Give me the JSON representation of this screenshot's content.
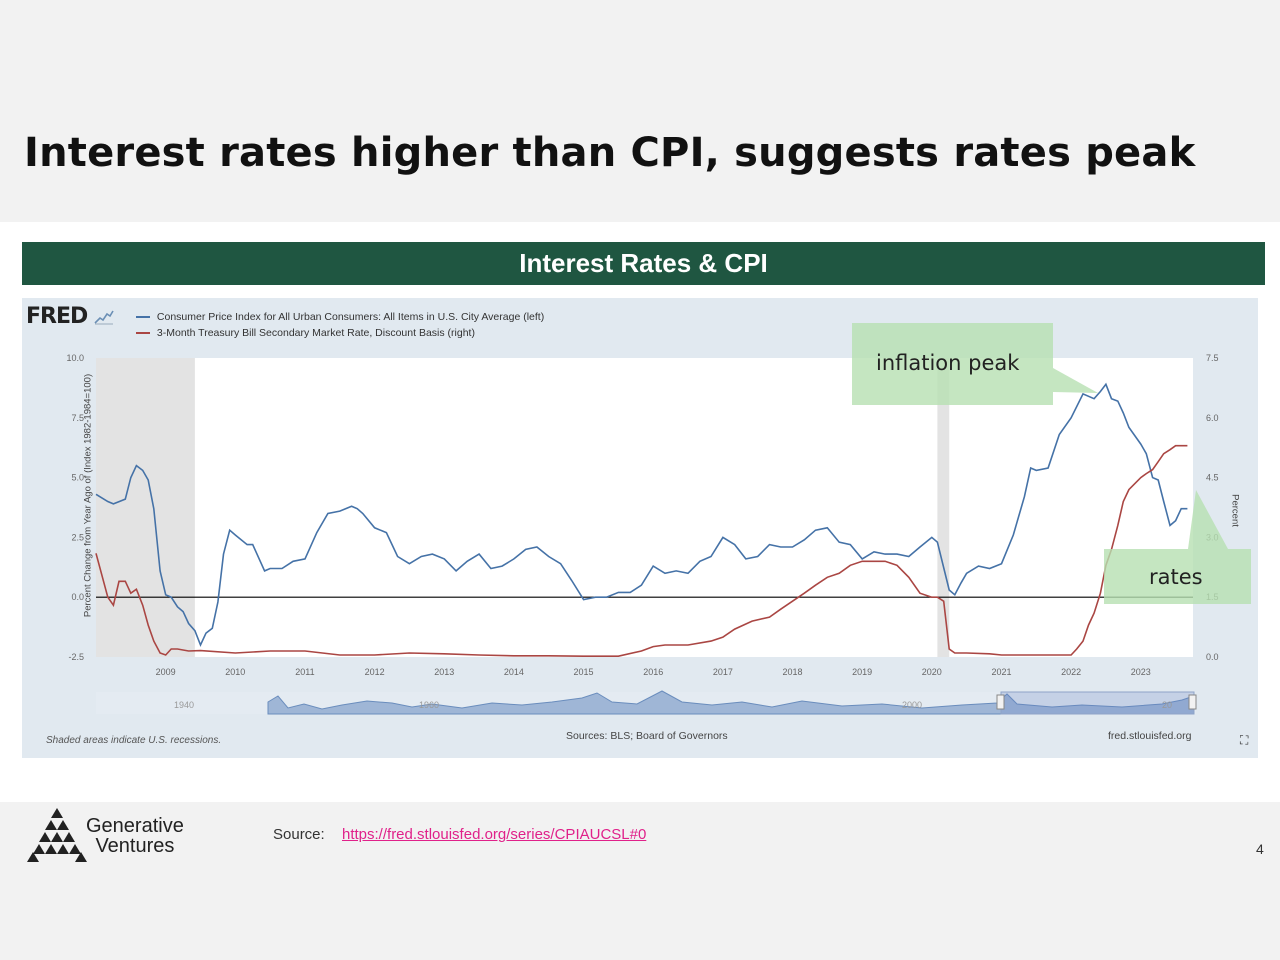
{
  "slide": {
    "title": "Interest rates higher than CPI, suggests rates peak",
    "banner": "Interest Rates & CPI",
    "callout_inflation": "inflation peak",
    "callout_rates": "rates",
    "source_label": "Source:",
    "source_link": "https://fred.stlouisfed.org/series/CPIAUCSL#0",
    "page_number": "4",
    "brand_line1": "Generative",
    "brand_line2": "Ventures"
  },
  "fred": {
    "logo": "FRED",
    "recession_note": "Shaded areas indicate U.S. recessions.",
    "sources": "Sources: BLS; Board of Governors",
    "url": "fred.stlouisfed.org",
    "navigator_labels": [
      "1940",
      "1960",
      "2000",
      "20"
    ]
  },
  "colors": {
    "banner": "#1f5641",
    "cpi_line": "#4572a7",
    "tbill_line": "#aa4643",
    "callout": "#b7e0b2",
    "link": "#e0218a"
  },
  "chart_data": {
    "type": "line",
    "legend": [
      "Consumer Price Index for All Urban Consumers: All Items in U.S. City Average (left)",
      "3-Month Treasury Bill Secondary Market Rate, Discount Basis (right)"
    ],
    "ylabel_left": "Percent Change from Year Ago of (Index 1982-1984=100)",
    "ylabel_right": "Percent",
    "ylim_left": [
      -2.5,
      10
    ],
    "ylim_right": [
      0,
      7.5
    ],
    "yticks_left": [
      "10.0",
      "7.5",
      "5.0",
      "2.5",
      "0.0",
      "-2.5"
    ],
    "yticks_right": [
      "7.5",
      "6.0",
      "4.5",
      "3.0",
      "1.5",
      "0.0"
    ],
    "xticks": [
      "2009",
      "2010",
      "2011",
      "2012",
      "2013",
      "2014",
      "2015",
      "2016",
      "2017",
      "2018",
      "2019",
      "2020",
      "2021",
      "2022",
      "2023"
    ],
    "xlim": [
      2008.0,
      2023.75
    ],
    "recessions": [
      [
        2008.0,
        2009.42
      ],
      [
        2020.08,
        2020.25
      ]
    ],
    "series": [
      {
        "axis": "left",
        "x": [
          2008.0,
          2008.17,
          2008.25,
          2008.42,
          2008.5,
          2008.58,
          2008.67,
          2008.75,
          2008.83,
          2008.92,
          2009.0,
          2009.08,
          2009.17,
          2009.25,
          2009.33,
          2009.42,
          2009.5,
          2009.58,
          2009.67,
          2009.75,
          2009.83,
          2009.92,
          2010.0,
          2010.17,
          2010.25,
          2010.42,
          2010.5,
          2010.67,
          2010.83,
          2011.0,
          2011.17,
          2011.33,
          2011.5,
          2011.67,
          2011.75,
          2011.83,
          2012.0,
          2012.17,
          2012.33,
          2012.5,
          2012.67,
          2012.83,
          2013.0,
          2013.17,
          2013.33,
          2013.5,
          2013.67,
          2013.83,
          2014.0,
          2014.17,
          2014.33,
          2014.5,
          2014.67,
          2014.83,
          2015.0,
          2015.17,
          2015.33,
          2015.5,
          2015.67,
          2015.83,
          2016.0,
          2016.17,
          2016.33,
          2016.5,
          2016.67,
          2016.83,
          2017.0,
          2017.17,
          2017.33,
          2017.5,
          2017.67,
          2017.83,
          2018.0,
          2018.17,
          2018.33,
          2018.5,
          2018.67,
          2018.83,
          2019.0,
          2019.17,
          2019.33,
          2019.5,
          2019.67,
          2019.83,
          2020.0,
          2020.08,
          2020.25,
          2020.33,
          2020.42,
          2020.5,
          2020.67,
          2020.83,
          2021.0,
          2021.17,
          2021.33,
          2021.42,
          2021.5,
          2021.67,
          2021.83,
          2022.0,
          2022.17,
          2022.33,
          2022.42,
          2022.5,
          2022.58,
          2022.67,
          2022.75,
          2022.83,
          2023.0,
          2023.08,
          2023.17,
          2023.25,
          2023.33,
          2023.42,
          2023.5,
          2023.58,
          2023.67
        ],
        "values": [
          4.3,
          4.0,
          3.9,
          4.1,
          5.0,
          5.5,
          5.3,
          4.9,
          3.7,
          1.1,
          0.1,
          0.0,
          -0.4,
          -0.6,
          -1.1,
          -1.4,
          -2.0,
          -1.5,
          -1.3,
          -0.2,
          1.8,
          2.8,
          2.6,
          2.2,
          2.2,
          1.1,
          1.2,
          1.2,
          1.5,
          1.6,
          2.7,
          3.5,
          3.6,
          3.8,
          3.7,
          3.5,
          2.9,
          2.7,
          1.7,
          1.4,
          1.7,
          1.8,
          1.6,
          1.1,
          1.5,
          1.8,
          1.2,
          1.3,
          1.6,
          2.0,
          2.1,
          1.7,
          1.4,
          0.7,
          -0.1,
          0.0,
          0.0,
          0.2,
          0.2,
          0.5,
          1.3,
          1.0,
          1.1,
          1.0,
          1.5,
          1.7,
          2.5,
          2.2,
          1.6,
          1.7,
          2.2,
          2.1,
          2.1,
          2.4,
          2.8,
          2.9,
          2.3,
          2.2,
          1.6,
          1.9,
          1.8,
          1.8,
          1.7,
          2.1,
          2.5,
          2.3,
          0.3,
          0.1,
          0.6,
          1.0,
          1.3,
          1.2,
          1.4,
          2.6,
          4.2,
          5.4,
          5.3,
          5.4,
          6.8,
          7.5,
          8.5,
          8.3,
          8.6,
          8.9,
          8.3,
          8.2,
          7.7,
          7.1,
          6.4,
          6.0,
          5.0,
          4.9,
          4.0,
          3.0,
          3.2,
          3.7,
          3.7
        ]
      },
      {
        "axis": "right",
        "x": [
          2008.0,
          2008.17,
          2008.25,
          2008.33,
          2008.42,
          2008.5,
          2008.58,
          2008.67,
          2008.75,
          2008.83,
          2008.92,
          2009.0,
          2009.08,
          2009.17,
          2009.33,
          2009.5,
          2010.0,
          2010.5,
          2011.0,
          2011.5,
          2012.0,
          2012.5,
          2013.0,
          2013.5,
          2014.0,
          2014.5,
          2015.0,
          2015.5,
          2015.83,
          2016.0,
          2016.17,
          2016.5,
          2016.83,
          2017.0,
          2017.17,
          2017.42,
          2017.67,
          2017.83,
          2018.0,
          2018.17,
          2018.33,
          2018.5,
          2018.67,
          2018.83,
          2019.0,
          2019.17,
          2019.33,
          2019.5,
          2019.67,
          2019.83,
          2020.0,
          2020.08,
          2020.17,
          2020.25,
          2020.33,
          2020.5,
          2020.83,
          2021.0,
          2021.5,
          2021.83,
          2022.0,
          2022.08,
          2022.17,
          2022.25,
          2022.33,
          2022.42,
          2022.5,
          2022.58,
          2022.67,
          2022.75,
          2022.83,
          2023.0,
          2023.08,
          2023.17,
          2023.25,
          2023.33,
          2023.42,
          2023.5,
          2023.58,
          2023.67
        ],
        "values": [
          2.6,
          1.5,
          1.3,
          1.9,
          1.9,
          1.6,
          1.7,
          1.3,
          0.8,
          0.4,
          0.1,
          0.05,
          0.2,
          0.2,
          0.15,
          0.16,
          0.1,
          0.15,
          0.15,
          0.05,
          0.05,
          0.1,
          0.08,
          0.05,
          0.03,
          0.03,
          0.02,
          0.02,
          0.15,
          0.26,
          0.3,
          0.3,
          0.4,
          0.5,
          0.7,
          0.9,
          1.0,
          1.2,
          1.4,
          1.6,
          1.8,
          2.0,
          2.1,
          2.3,
          2.4,
          2.4,
          2.4,
          2.3,
          2.0,
          1.6,
          1.5,
          1.5,
          1.4,
          0.2,
          0.1,
          0.1,
          0.08,
          0.05,
          0.05,
          0.05,
          0.05,
          0.2,
          0.4,
          0.8,
          1.1,
          1.6,
          2.3,
          2.7,
          3.3,
          3.9,
          4.2,
          4.5,
          4.6,
          4.7,
          4.9,
          5.1,
          5.2,
          5.3,
          5.3,
          5.3
        ]
      }
    ]
  }
}
